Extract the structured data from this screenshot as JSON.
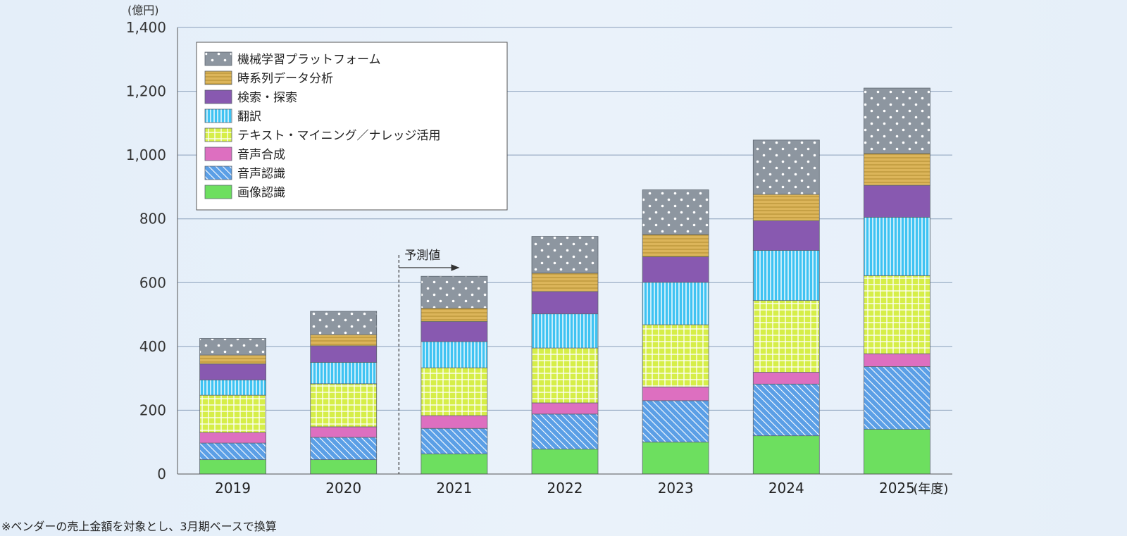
{
  "chart_data": {
    "type": "bar",
    "stacked": true,
    "unit_label": "(億円)",
    "categories": [
      "2019",
      "2020",
      "2021",
      "2022",
      "2023",
      "2024",
      "2025"
    ],
    "x_unit_suffix": "(年度)",
    "ylim": [
      0,
      1400
    ],
    "yticks": [
      "0",
      "200",
      "400",
      "600",
      "800",
      "1,000",
      "1,200",
      "1,400"
    ],
    "grid": true,
    "legend_position": "top-left",
    "forecast_label": "予測値",
    "forecast_from": "2021",
    "series": [
      {
        "name": "画像認識",
        "color": "#6ddf5f",
        "pattern": "solid",
        "values": [
          45,
          45,
          63,
          78,
          100,
          120,
          140
        ]
      },
      {
        "name": "音声認識",
        "color": "#5b9fe6",
        "pattern": "diagonal",
        "values": [
          52,
          70,
          80,
          110,
          130,
          162,
          197
        ]
      },
      {
        "name": "音声合成",
        "color": "#dd6fc0",
        "pattern": "solid",
        "values": [
          33,
          33,
          40,
          35,
          43,
          37,
          40
        ]
      },
      {
        "name": "テキスト・マイニング／ナレッジ活用",
        "color": "#d6ee48",
        "pattern": "grid",
        "values": [
          117,
          135,
          150,
          172,
          195,
          225,
          245
        ]
      },
      {
        "name": "翻訳",
        "color": "#3fc3f2",
        "pattern": "vertical",
        "values": [
          48,
          67,
          82,
          107,
          133,
          157,
          183
        ]
      },
      {
        "name": "検索・探索",
        "color": "#8859b0",
        "pattern": "solid",
        "values": [
          50,
          52,
          63,
          70,
          80,
          93,
          100
        ]
      },
      {
        "name": "時系列データ分析",
        "color": "#dcb55a",
        "pattern": "horizontal",
        "values": [
          28,
          35,
          42,
          58,
          70,
          83,
          100
        ]
      },
      {
        "name": "機械学習プラットフォーム",
        "color": "#8d96a0",
        "pattern": "dots",
        "values": [
          52,
          73,
          100,
          115,
          140,
          170,
          205
        ]
      }
    ]
  },
  "footnote": "※ベンダーの売上金額を対象とし、3月期ベースで換算"
}
